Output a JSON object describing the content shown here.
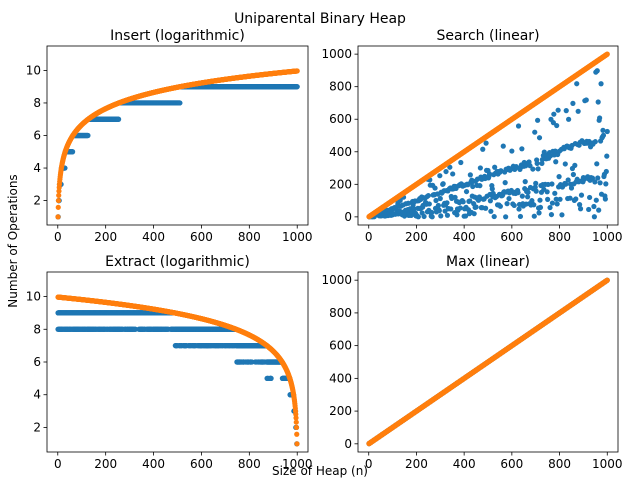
{
  "figure": {
    "suptitle": "Uniparental Binary Heap",
    "xlabel": "Size of Heap (n)",
    "ylabel": "Number of Operations"
  },
  "colors": {
    "measured": "#1f77b4",
    "theoretical": "#ff7f0e"
  },
  "chart_data": [
    {
      "type": "scatter",
      "title": "Insert (logarithmic)",
      "xlim": [
        -45,
        1045
      ],
      "ylim": [
        0.5,
        11.5
      ],
      "xticks": [
        0,
        200,
        400,
        600,
        800,
        1000
      ],
      "yticks": [
        2,
        4,
        6,
        8,
        10
      ],
      "series": [
        {
          "kind": "measured",
          "rule": "floor(log2(n+1))",
          "n_range": [
            1,
            1000
          ]
        },
        {
          "kind": "theoretical",
          "rule": "log2(n+1)",
          "n_range": [
            1,
            1000
          ]
        }
      ]
    },
    {
      "type": "scatter",
      "title": "Search (linear)",
      "xlim": [
        -45,
        1045
      ],
      "ylim": [
        -50,
        1050
      ],
      "xticks": [
        0,
        200,
        400,
        600,
        800,
        1000
      ],
      "yticks": [
        0,
        200,
        400,
        600,
        800,
        1000
      ],
      "series": [
        {
          "kind": "measured",
          "rule": "scattered below y=n, concentrated near y=n/2 and y=n/4",
          "n_range": [
            1,
            1000
          ]
        },
        {
          "kind": "theoretical",
          "rule": "y = n",
          "n_range": [
            1,
            1000
          ]
        }
      ]
    },
    {
      "type": "scatter",
      "title": "Extract (logarithmic)",
      "xlim": [
        -45,
        1045
      ],
      "ylim": [
        0.5,
        11.5
      ],
      "xticks": [
        0,
        200,
        400,
        600,
        800,
        1000
      ],
      "yticks": [
        2,
        4,
        6,
        8,
        10
      ],
      "series": [
        {
          "kind": "measured",
          "rule": "floor(log2(1001-n)), with spread of about one level",
          "n_range": [
            1,
            1000
          ]
        },
        {
          "kind": "theoretical",
          "rule": "log2(1001-n)",
          "n_range": [
            1,
            1000
          ]
        }
      ]
    },
    {
      "type": "scatter",
      "title": "Max (linear)",
      "xlim": [
        -45,
        1045
      ],
      "ylim": [
        -50,
        1050
      ],
      "xticks": [
        0,
        200,
        400,
        600,
        800,
        1000
      ],
      "yticks": [
        0,
        200,
        400,
        600,
        800,
        1000
      ],
      "series": [
        {
          "kind": "measured",
          "rule": "y = n",
          "n_range": [
            1,
            1000
          ]
        },
        {
          "kind": "theoretical",
          "rule": "y = n",
          "n_range": [
            1,
            1000
          ]
        }
      ]
    }
  ]
}
